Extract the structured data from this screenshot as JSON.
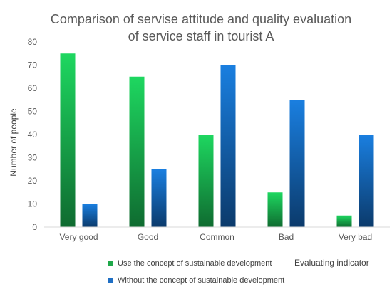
{
  "chart_data": {
    "type": "bar",
    "title_lines": [
      "Comparison of servise attitude and quality evaluation",
      "of service staff in tourist A"
    ],
    "categories": [
      "Very good",
      "Good",
      "Common",
      "Bad",
      "Very bad"
    ],
    "series": [
      {
        "name": "Use the concept of sustainable development",
        "values": [
          75,
          65,
          40,
          15,
          5
        ],
        "color_top": "#1ed760",
        "color_bottom": "#0f6b30"
      },
      {
        "name": "Without the concept of sustainable development",
        "values": [
          10,
          25,
          70,
          55,
          40
        ],
        "color_top": "#1a7fe0",
        "color_bottom": "#0b3a6b"
      }
    ],
    "ylabel": "Number of people",
    "xlabel": "Evaluating indicator",
    "ylim": [
      0,
      80
    ],
    "yticks": [
      0,
      10,
      20,
      30,
      40,
      50,
      60,
      70,
      80
    ],
    "grid": false,
    "legend": "bottom"
  }
}
